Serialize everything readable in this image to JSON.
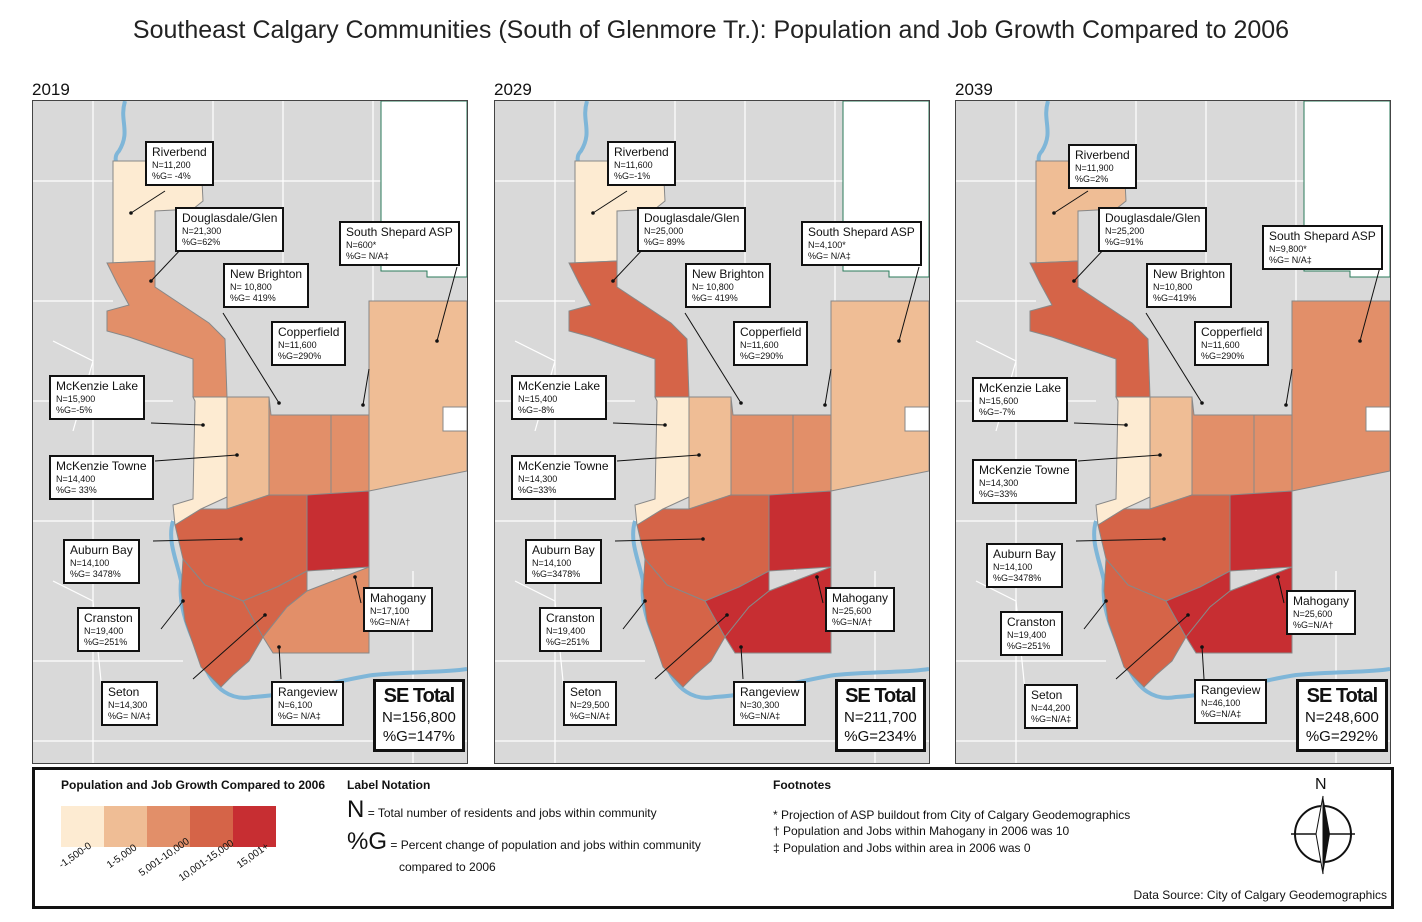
{
  "title": "Southeast Calgary Communities (South of Glenmore Tr.): Population and Job Growth Compared to 2006",
  "colors": {
    "class1": "#fdebd2",
    "class2": "#efbd95",
    "class3": "#e28f69",
    "class4": "#d56448",
    "class5": "#c72e32",
    "background": "#d9d9d9",
    "water": "#7fb6d8",
    "road": "#ffffff",
    "boundary": "#888888"
  },
  "panels": [
    {
      "year": "2019",
      "total": {
        "heading": "SE Total",
        "n": "N=156,800",
        "g": "%G=147%"
      },
      "communities": {
        "riverbend": {
          "name": "Riverbend",
          "n": "N=11,200",
          "g": "%G= -4%",
          "class": 1
        },
        "douglasdale": {
          "name": "Douglasdale/Glen",
          "n": "N=21,300",
          "g": "%G=62%",
          "class": 3
        },
        "south_shepard": {
          "name": "South Shepard ASP",
          "n": "N=600*",
          "g": "%G= N/A‡",
          "class": 2
        },
        "new_brighton": {
          "name": "New Brighton",
          "n": "N= 10,800",
          "g": "%G= 419%",
          "class": 3
        },
        "copperfield": {
          "name": "Copperfield",
          "n": "N=11,600",
          "g": "%G=290%",
          "class": 3
        },
        "mckenzie_lake": {
          "name": "McKenzie Lake",
          "n": "N=15,900",
          "g": "%G=-5%",
          "class": 1
        },
        "mckenzie_towne": {
          "name": "McKenzie Towne",
          "n": "N=14,400",
          "g": "%G= 33%",
          "class": 2
        },
        "auburn_bay": {
          "name": "Auburn Bay",
          "n": "N=14,100",
          "g": "%G= 3478%",
          "class": 4
        },
        "cranston": {
          "name": "Cranston",
          "n": "N=19,400",
          "g": "%G=251%",
          "class": 4
        },
        "mahogany": {
          "name": "Mahogany",
          "n": "N=17,100",
          "g": "%G=N/A†",
          "class": 5
        },
        "seton": {
          "name": "Seton",
          "n": "N=14,300",
          "g": "%G= N/A‡",
          "class": 4
        },
        "rangeview": {
          "name": "Rangeview",
          "n": "N=6,100",
          "g": "%G= N/A‡",
          "class": 3
        }
      }
    },
    {
      "year": "2029",
      "total": {
        "heading": "SE Total",
        "n": "N=211,700",
        "g": "%G=234%"
      },
      "communities": {
        "riverbend": {
          "name": "Riverbend",
          "n": "N=11,600",
          "g": "%G=-1%",
          "class": 1
        },
        "douglasdale": {
          "name": "Douglasdale/Glen",
          "n": "N=25,000",
          "g": "%G= 89%",
          "class": 4
        },
        "south_shepard": {
          "name": "South Shepard ASP",
          "n": "N=4,100*",
          "g": "%G= N/A‡",
          "class": 2
        },
        "new_brighton": {
          "name": "New Brighton",
          "n": "N= 10,800",
          "g": "%G= 419%",
          "class": 3
        },
        "copperfield": {
          "name": "Copperfield",
          "n": "N=11,600",
          "g": "%G=290%",
          "class": 3
        },
        "mckenzie_lake": {
          "name": "McKenzie Lake",
          "n": "N=15,400",
          "g": "%G=-8%",
          "class": 1
        },
        "mckenzie_towne": {
          "name": "McKenzie Towne",
          "n": "N=14,300",
          "g": "%G=33%",
          "class": 2
        },
        "auburn_bay": {
          "name": "Auburn Bay",
          "n": "N=14,100",
          "g": "%G=3478%",
          "class": 4
        },
        "cranston": {
          "name": "Cranston",
          "n": "N=19,400",
          "g": "%G=251%",
          "class": 4
        },
        "mahogany": {
          "name": "Mahogany",
          "n": "N=25,600",
          "g": "%G=N/A†",
          "class": 5
        },
        "seton": {
          "name": "Seton",
          "n": "N=29,500",
          "g": "%G=N/A‡",
          "class": 5
        },
        "rangeview": {
          "name": "Rangeview",
          "n": "N=30,300",
          "g": "%G=N/A‡",
          "class": 5
        }
      }
    },
    {
      "year": "2039",
      "total": {
        "heading": "SE Total",
        "n": "N=248,600",
        "g": "%G=292%"
      },
      "communities": {
        "riverbend": {
          "name": "Riverbend",
          "n": "N=11,900",
          "g": "%G=2%",
          "class": 2
        },
        "douglasdale": {
          "name": "Douglasdale/Glen",
          "n": "N=25,200",
          "g": "%G=91%",
          "class": 4
        },
        "south_shepard": {
          "name": "South Shepard ASP",
          "n": "N=9,800*",
          "g": "%G= N/A‡",
          "class": 3
        },
        "new_brighton": {
          "name": "New Brighton",
          "n": "N=10,800",
          "g": "%G=419%",
          "class": 3
        },
        "copperfield": {
          "name": "Copperfield",
          "n": "N=11,600",
          "g": "%G=290%",
          "class": 3
        },
        "mckenzie_lake": {
          "name": "McKenzie Lake",
          "n": "N=15,600",
          "g": "%G=-7%",
          "class": 1
        },
        "mckenzie_towne": {
          "name": "McKenzie Towne",
          "n": "N=14,300",
          "g": "%G=33%",
          "class": 2
        },
        "auburn_bay": {
          "name": "Auburn Bay",
          "n": "N=14,100",
          "g": "%G=3478%",
          "class": 4
        },
        "cranston": {
          "name": "Cranston",
          "n": "N=19,400",
          "g": "%G=251%",
          "class": 4
        },
        "mahogany": {
          "name": "Mahogany",
          "n": "N=25,600",
          "g": "%G=N/A†",
          "class": 5
        },
        "seton": {
          "name": "Seton",
          "n": "N=44,200",
          "g": "%G=N/A‡",
          "class": 5
        },
        "rangeview": {
          "name": "Rangeview",
          "n": "N=46,100",
          "g": "%G=N/A‡",
          "class": 5
        }
      }
    }
  ],
  "legend": {
    "title": "Population and Job Growth Compared to 2006",
    "classes": [
      "-1,500-0",
      "1-5,000",
      "5,001-10,000",
      "10,001-15,000",
      "15,001+"
    ]
  },
  "notation": {
    "title": "Label Notation",
    "n_symbol": "N",
    "n_text": "= Total number of residents and jobs within community",
    "g_symbol": "%G",
    "g_text": "= Percent change of population and jobs within community",
    "g_text2": "compared to 2006"
  },
  "footnotes": {
    "title": "Footnotes",
    "items": [
      "* Projection of ASP buildout from City of Calgary Geodemographics",
      "† Population and Jobs within Mahogany in 2006 was 10",
      "‡ Population and Jobs within area in 2006 was 0"
    ]
  },
  "compass": "N",
  "source": "Data Source: City of Calgary Geodemographics"
}
